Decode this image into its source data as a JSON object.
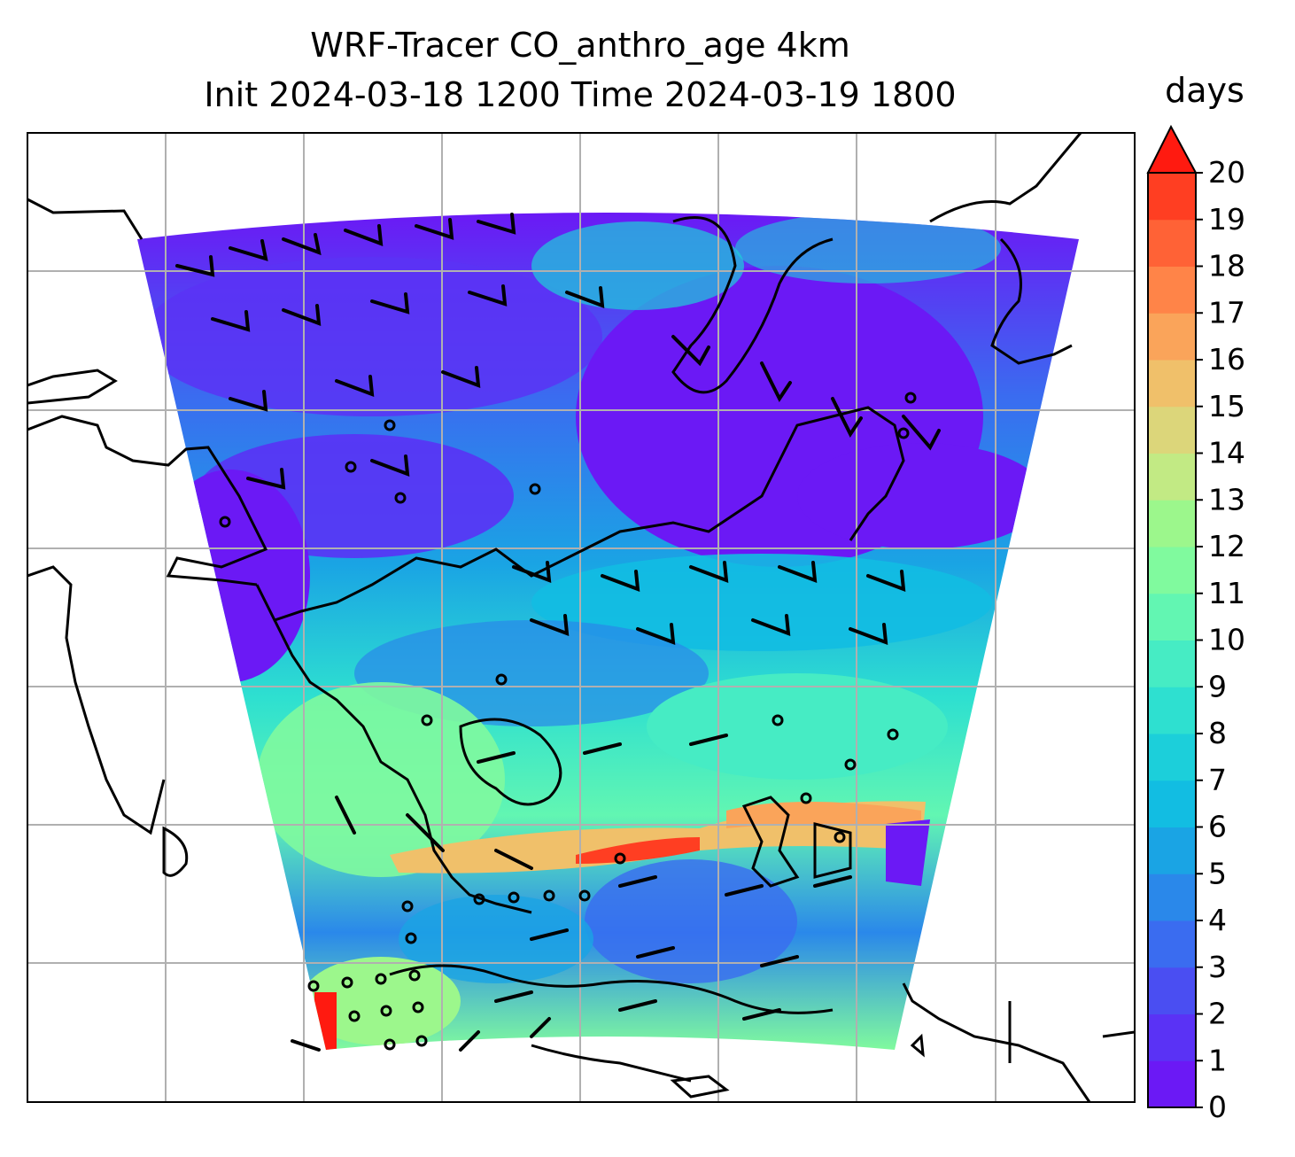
{
  "figure": {
    "title_line1": "WRF-Tracer CO_anthro_age 4km",
    "title_line2": "Init 2024-03-18 1200 Time 2024-03-19 1800"
  },
  "colorbar": {
    "label": "days",
    "ticks": [
      "0",
      "1",
      "2",
      "3",
      "4",
      "5",
      "6",
      "7",
      "8",
      "9",
      "10",
      "11",
      "12",
      "13",
      "14",
      "15",
      "16",
      "17",
      "18",
      "19",
      "20"
    ],
    "extend": "max",
    "colors": [
      "#6b19f5",
      "#5a32f5",
      "#4a4ef2",
      "#3a6cf0",
      "#2a88ea",
      "#1aa4e4",
      "#12bde2",
      "#1ccfda",
      "#2ee0d0",
      "#46ecc4",
      "#62f6b2",
      "#80fa9e",
      "#9cf78c",
      "#c2ea84",
      "#dcd67a",
      "#f0c06a",
      "#faa45a",
      "#ff8448",
      "#ff6236",
      "#ff3e22",
      "#ff1a10"
    ]
  },
  "map": {
    "description": "",
    "domain_colors": {
      "low": "#6b19f5",
      "mid": "#2a88ea",
      "high": "#46ecc4",
      "max": "#ff3e22"
    }
  }
}
